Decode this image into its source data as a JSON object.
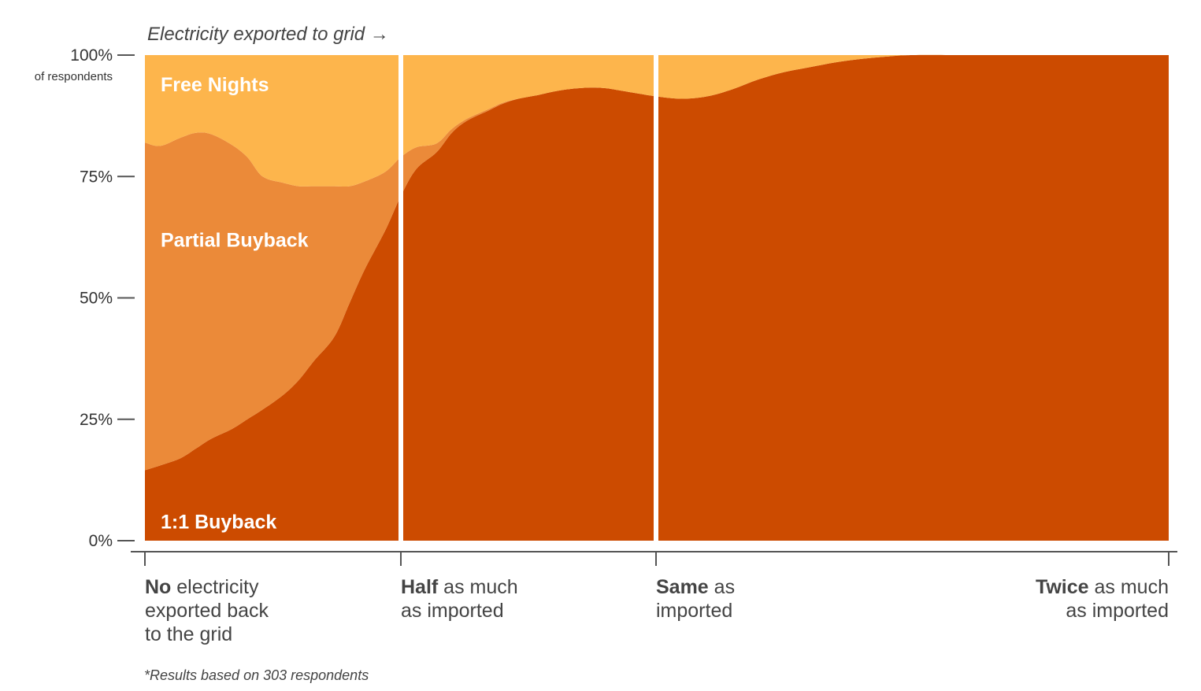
{
  "chart_data": {
    "type": "area",
    "stacked": true,
    "title": "Electricity exported to grid →",
    "y_unit_label": "of respondents",
    "y_ticks": [
      "0%",
      "25%",
      "50%",
      "75%",
      "100%"
    ],
    "ylim": [
      0,
      100
    ],
    "xlim": [
      0,
      2
    ],
    "x_tick_values": [
      0,
      0.5,
      1,
      2
    ],
    "x_categories": [
      {
        "bold": "No",
        "rest": " electricity",
        "lines": [
          "exported back",
          "to the grid"
        ],
        "align": "start"
      },
      {
        "bold": "Half",
        "rest": " as much",
        "lines": [
          "as imported"
        ],
        "align": "start"
      },
      {
        "bold": "Same",
        "rest": " as",
        "lines": [
          "imported"
        ],
        "align": "start"
      },
      {
        "bold": "Twice",
        "rest": " as much",
        "lines": [
          "as imported"
        ],
        "align": "end"
      }
    ],
    "x": [
      0,
      0.03,
      0.07,
      0.1,
      0.13,
      0.17,
      0.2,
      0.23,
      0.27,
      0.3,
      0.33,
      0.37,
      0.4,
      0.43,
      0.47,
      0.5,
      0.53,
      0.57,
      0.6,
      0.63,
      0.67,
      0.7,
      0.73,
      0.77,
      0.8,
      0.83,
      0.87,
      0.9,
      0.93,
      0.97,
      1.0,
      1.05,
      1.1,
      1.15,
      1.2,
      1.25,
      1.3,
      1.35,
      1.4,
      1.45,
      1.5,
      1.6,
      1.7,
      1.8,
      1.9,
      2.0
    ],
    "series": [
      {
        "name": "1:1 Buyback",
        "color": "#cc4b00",
        "values": [
          14.5,
          15.5,
          17,
          19,
          21,
          23,
          25,
          27,
          30,
          33,
          37,
          42,
          49,
          56,
          64,
          71,
          76.5,
          80,
          84,
          86.5,
          88.5,
          90,
          91,
          91.8,
          92.5,
          93,
          93.3,
          93.2,
          92.7,
          92,
          91.5,
          91,
          91.5,
          93,
          95,
          96.5,
          97.5,
          98.5,
          99.2,
          99.7,
          100,
          100,
          100,
          100,
          100,
          100
        ]
      },
      {
        "name": "Partial Buyback",
        "color": "#eb8a39",
        "values": [
          67.5,
          65.8,
          66,
          65,
          62.7,
          58.5,
          54,
          48,
          43.7,
          40,
          36,
          31,
          24,
          18,
          12,
          8,
          4.5,
          1.8,
          0.8,
          0.4,
          0.3,
          0.2,
          0,
          0,
          0,
          0,
          0,
          0,
          0,
          0,
          0,
          0,
          0,
          0,
          0,
          0,
          0,
          0,
          0,
          0,
          0,
          0,
          0,
          0,
          0,
          0
        ]
      },
      {
        "name": "Free Nights",
        "color": "#fdb54c",
        "values": [
          18,
          18.7,
          17,
          16,
          16.3,
          18.5,
          21,
          25,
          26.3,
          27,
          27,
          27,
          27,
          26,
          24,
          21,
          19,
          18.2,
          15.2,
          13.1,
          11.2,
          9.8,
          9,
          8.2,
          7.5,
          7,
          6.7,
          6.8,
          7.3,
          8,
          8.5,
          9,
          8.5,
          7,
          5,
          3.5,
          2.5,
          1.5,
          0.8,
          0.3,
          0,
          0,
          0,
          0,
          0,
          0
        ]
      }
    ],
    "series_label_y": [
      4,
      62,
      94
    ],
    "dividers_at_x": [
      0.5,
      1.0
    ],
    "footnote": "*Results based on 303 respondents"
  }
}
